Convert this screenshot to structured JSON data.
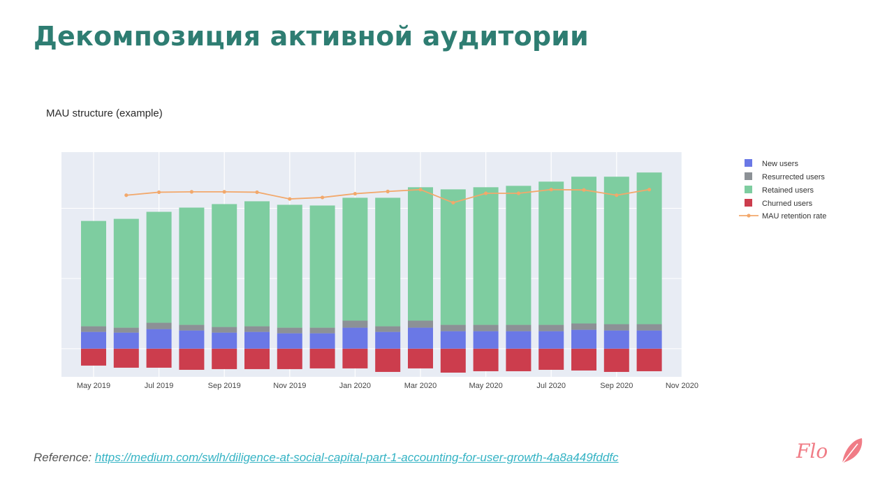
{
  "slide": {
    "title": "Декомпозиция активной аудитории",
    "reference_label": "Reference:",
    "reference_link": "https://medium.com/swlh/diligence-at-social-capital-part-1-accounting-for-user-growth-4a8a449fddfc",
    "logo_text": "Flo"
  },
  "colors": {
    "title": "#2e7d72",
    "new_users": "#6a78e6",
    "resurrected_users": "#8c9196",
    "retained_users": "#7ecda0",
    "churned_users": "#cc3d4d",
    "retention_line": "#f2a86b",
    "plot_bg": "#e8ecf4",
    "link": "#34b3c4",
    "logo": "#f07c86"
  },
  "chart_data": {
    "type": "bar",
    "title": "MAU structure (example)",
    "xlabel": "",
    "ylabel": "",
    "grid": true,
    "legend_position": "right",
    "x_tick_labels": [
      "May 2019",
      "Jul 2019",
      "Sep 2019",
      "Nov 2019",
      "Jan 2020",
      "Mar 2020",
      "May 2020",
      "Jul 2020",
      "Sep 2020",
      "Nov 2020"
    ],
    "categories": [
      "2019-05",
      "2019-06",
      "2019-07",
      "2019-08",
      "2019-09",
      "2019-10",
      "2019-11",
      "2019-12",
      "2020-01",
      "2020-02",
      "2020-03",
      "2020-04",
      "2020-05",
      "2020-06",
      "2020-07",
      "2020-08",
      "2020-09",
      "2020-10"
    ],
    "series": [
      {
        "name": "New users",
        "values": [
          24,
          23,
          28,
          26,
          23,
          24,
          22,
          22,
          30,
          24,
          30,
          25,
          25,
          25,
          25,
          27,
          26,
          26
        ]
      },
      {
        "name": "Resurrected users",
        "values": [
          8,
          7,
          9,
          8,
          8,
          8,
          8,
          8,
          10,
          8,
          10,
          9,
          9,
          9,
          9,
          9,
          9,
          9
        ]
      },
      {
        "name": "Retained users",
        "values": [
          150,
          155,
          158,
          167,
          175,
          178,
          175,
          174,
          175,
          183,
          190,
          193,
          196,
          198,
          204,
          209,
          210,
          216
        ]
      },
      {
        "name": "Churned users",
        "values": [
          -24,
          -27,
          -27,
          -30,
          -29,
          -29,
          -29,
          -28,
          -28,
          -33,
          -28,
          -34,
          -32,
          -32,
          -30,
          -31,
          -33,
          -32
        ]
      }
    ],
    "line_series": {
      "name": "MAU retention rate",
      "x_start_index": 1,
      "values": [
        0.885,
        0.893,
        0.894,
        0.894,
        0.893,
        0.875,
        0.879,
        0.889,
        0.895,
        0.9,
        0.865,
        0.89,
        0.89,
        0.9,
        0.899,
        0.885,
        0.9
      ],
      "range": [
        0.4,
        1.0
      ]
    },
    "ylim": [
      -40,
      280
    ]
  }
}
